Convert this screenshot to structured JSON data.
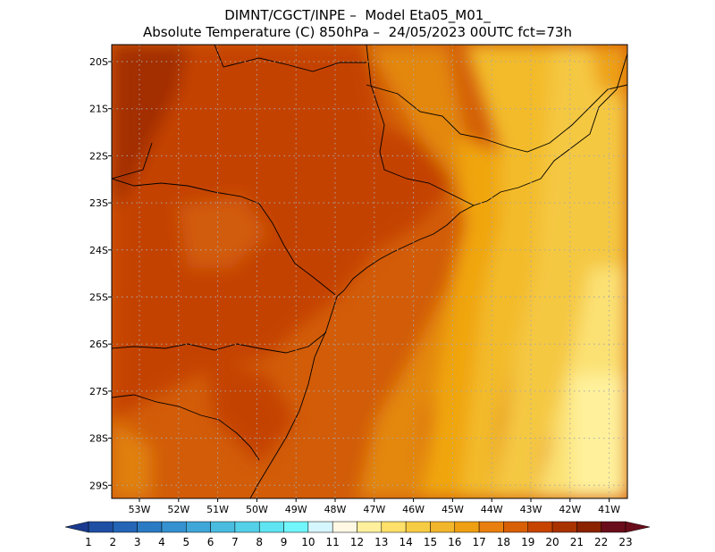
{
  "header": {
    "line1": "DIMNT/CGCT/INPE –  Model Eta05_M01_",
    "line2": "Absolute Temperature (C) 850hPa –  24/05/2023 00UTC fct=73h"
  },
  "map": {
    "lat_labels": [
      "20S",
      "21S",
      "22S",
      "23S",
      "24S",
      "25S",
      "26S",
      "27S",
      "28S",
      "29S"
    ],
    "lon_labels": [
      "53W",
      "52W",
      "51W",
      "50W",
      "49W",
      "48W",
      "47W",
      "46W",
      "45W",
      "44W",
      "43W",
      "42W",
      "41W"
    ],
    "grid": "dotted"
  },
  "colorbar": {
    "labels": [
      "1",
      "2",
      "3",
      "4",
      "5",
      "6",
      "7",
      "8",
      "9",
      "10",
      "11",
      "12",
      "13",
      "14",
      "15",
      "16",
      "17",
      "18",
      "19",
      "20",
      "21",
      "22",
      "23"
    ],
    "colors": [
      "#1a3a8f",
      "#1f4fa3",
      "#2465b5",
      "#2b7bc4",
      "#3591cf",
      "#3fa6d8",
      "#49bce0",
      "#54d0e8",
      "#5fe4f2",
      "#70f6fb",
      "#d6f6ff",
      "#fff8e4",
      "#fff09e",
      "#ffe06a",
      "#f7cc45",
      "#f2b62c",
      "#eea012",
      "#e97f0f",
      "#d85f06",
      "#c64400",
      "#a93300",
      "#8a2200",
      "#6a0d1a"
    ]
  }
}
